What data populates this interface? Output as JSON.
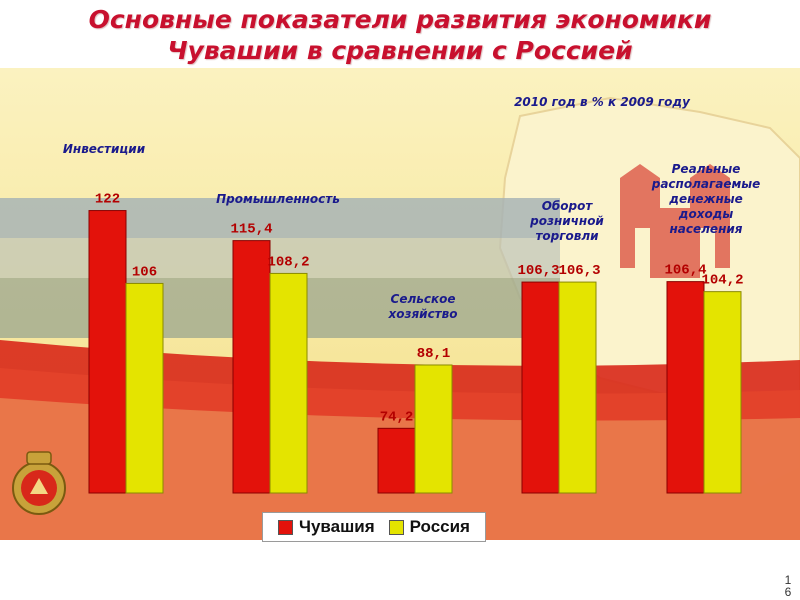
{
  "slide": {
    "title_line1": "Основные показатели развития экономики",
    "title_line2": "Чувашии в сравнении с Россией",
    "page_number": "16"
  },
  "colors": {
    "title": "#c8102e",
    "chuvashia": "#e3120b",
    "russia": "#e4e400",
    "group_label": "#1a1a8c",
    "value_label": "#b30000"
  },
  "icons": [
    "emblem-icon"
  ],
  "chart_data": {
    "type": "bar",
    "subtitle": "2010 год в % к 2009 году",
    "categories": [
      "Инвестиции",
      "Промышленность",
      "Сельское хозяйство",
      "Оборот розничной торговли",
      "Реальные располагаемые денежные доходы населения"
    ],
    "value_labels": {
      "chuvashia": [
        "122",
        "115,4",
        "74,2",
        "106,3",
        "106,4"
      ],
      "russia": [
        "106",
        "108,2",
        "88,1",
        "106,3",
        "104,2"
      ]
    },
    "series": [
      {
        "name": "Чувашия",
        "values": [
          122,
          115.4,
          74.2,
          106.3,
          106.4
        ]
      },
      {
        "name": "Россия",
        "values": [
          106,
          108.2,
          88.1,
          106.3,
          104.2
        ]
      }
    ],
    "baseline": 60,
    "ylim": [
      60,
      132
    ],
    "legend_position": "bottom-center"
  }
}
